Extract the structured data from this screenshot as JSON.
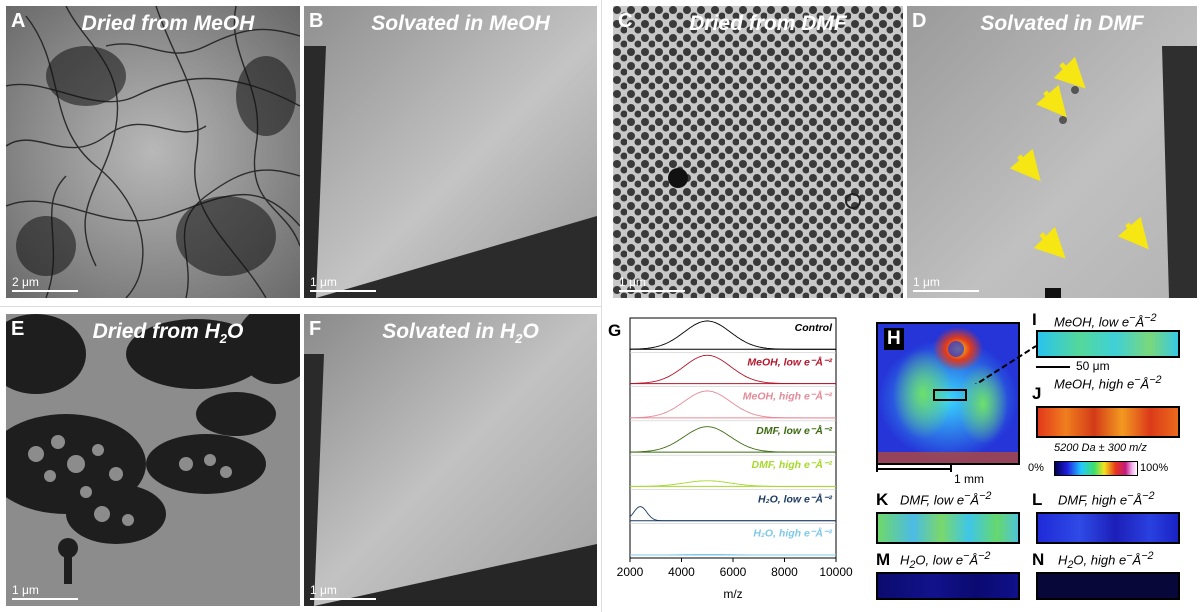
{
  "panels": {
    "A": {
      "letter": "A",
      "title": "Dried from MeOH",
      "scale": "2 μm"
    },
    "B": {
      "letter": "B",
      "title": "Solvated in MeOH",
      "scale": "1 μm"
    },
    "C": {
      "letter": "C",
      "title": "Dried from DMF",
      "scale": "1 μm"
    },
    "D": {
      "letter": "D",
      "title": "Solvated in DMF",
      "scale": "1 μm"
    },
    "E": {
      "letter": "E",
      "title_main": "Dried from H",
      "title_sub": "2",
      "title_end": "O",
      "scale": "1 μm"
    },
    "F": {
      "letter": "F",
      "title_main": "Solvated in H",
      "title_sub": "2",
      "title_end": "O",
      "scale": "1 μm"
    }
  },
  "colors": {
    "arrow": "#f5e614",
    "trace_control": "#000000",
    "trace_meoh_low": "#b5162b",
    "trace_meoh_high": "#e58a98",
    "trace_dmf_low": "#3c6b12",
    "trace_dmf_high": "#a6d92c",
    "trace_h2o_low": "#1c3c64",
    "trace_h2o_high": "#7fc8ea"
  },
  "chart_data": {
    "type": "line",
    "panel_letter": "G",
    "xlabel": "m/z",
    "xlim": [
      2000,
      10000
    ],
    "x_ticks": [
      "2000",
      "4000",
      "6000",
      "8000",
      "10000"
    ],
    "series": [
      {
        "name": "Control",
        "center": 5000,
        "amp": 1.0
      },
      {
        "name": "MeOH, low e⁻Å⁻²",
        "center": 5000,
        "amp": 1.0
      },
      {
        "name": "MeOH, high e⁻Å⁻²",
        "center": 5000,
        "amp": 0.95
      },
      {
        "name": "DMF, low e⁻Å⁻²",
        "center": 5000,
        "amp": 0.9
      },
      {
        "name": "DMF, high e⁻Å⁻²",
        "center": 5000,
        "amp": 0.2
      },
      {
        "name": "H₂O, low e⁻Å⁻²",
        "center": 2400,
        "amp": 0.5
      },
      {
        "name": "H₂O, high e⁻Å⁻²",
        "center": 5000,
        "amp": 0.02
      }
    ]
  },
  "msi": {
    "H": {
      "letter": "H",
      "scale": "1 mm"
    },
    "I": {
      "letter": "I",
      "label_main": "MeOH, low e",
      "label_rest": "Å",
      "scale": "50 μm"
    },
    "J": {
      "letter": "J",
      "label_main": "MeOH, high e",
      "label_rest": "Å"
    },
    "K": {
      "letter": "K",
      "label_main": "DMF, low e",
      "label_rest": "Å"
    },
    "L": {
      "letter": "L",
      "label_main": "DMF, high e",
      "label_rest": "Å"
    },
    "M": {
      "letter": "M",
      "label_pre": "H",
      "label_sub": "2",
      "label_main": "O, low e",
      "label_rest": "Å"
    },
    "N": {
      "letter": "N",
      "label_pre": "H",
      "label_sub": "2",
      "label_main": "O, high e",
      "label_rest": "Å"
    },
    "colorbar": {
      "title": "5200 Da ± 300 m/z",
      "min": "0%",
      "max": "100%"
    }
  }
}
